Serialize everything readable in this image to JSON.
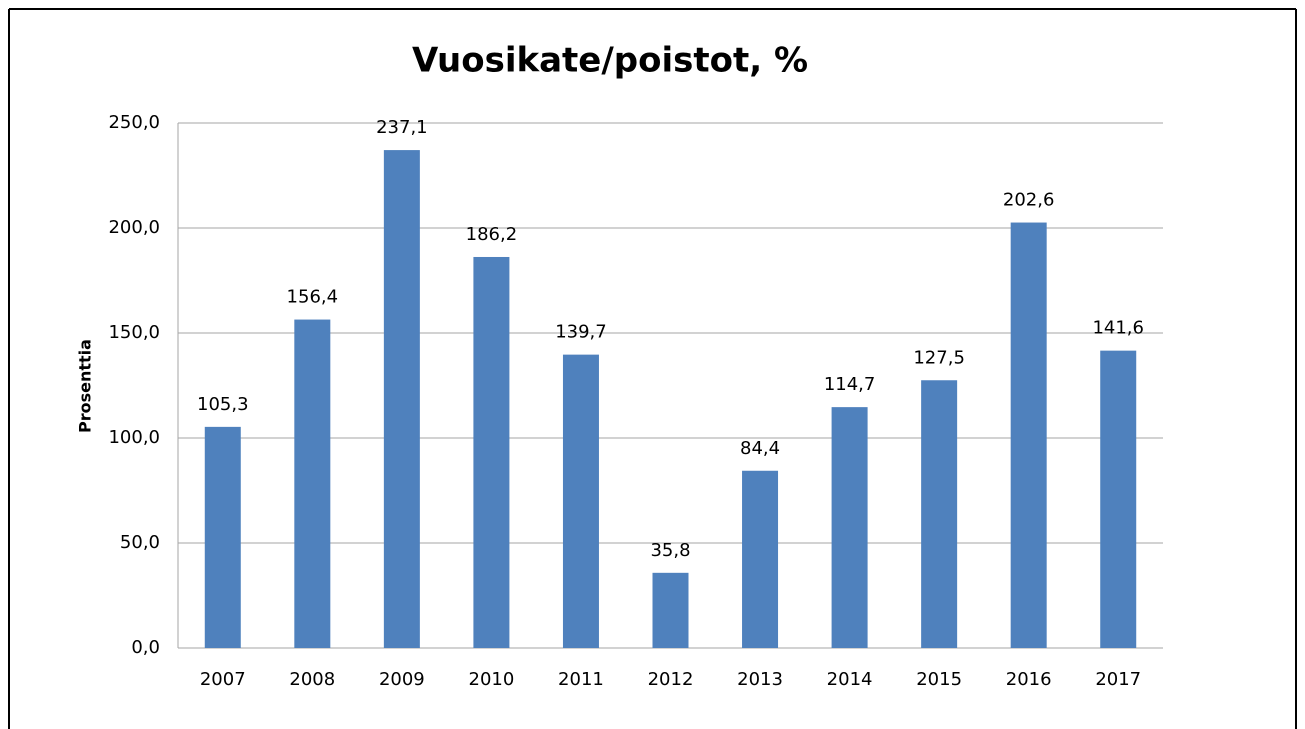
{
  "chart_data": {
    "type": "bar",
    "title": "Vuosikate/poistot, %",
    "y_label": "Prosenttia",
    "categories": [
      "2007",
      "2008",
      "2009",
      "2010",
      "2011",
      "2012",
      "2013",
      "2014",
      "2015",
      "2016",
      "2017"
    ],
    "values": [
      105.3,
      156.4,
      237.1,
      186.2,
      139.7,
      35.8,
      84.4,
      114.7,
      127.5,
      202.6,
      141.6
    ],
    "value_labels": [
      "105,3",
      "156,4",
      "237,1",
      "186,2",
      "139,7",
      "35,8",
      "84,4",
      "114,7",
      "127,5",
      "202,6",
      "141,6"
    ],
    "color": "#4f81bd",
    "ylim": [
      0,
      250
    ],
    "yticks": [
      {
        "value": 0,
        "label": "0,0"
      },
      {
        "value": 50,
        "label": "50,0"
      },
      {
        "value": 100,
        "label": "100,0"
      },
      {
        "value": 150,
        "label": "150,0"
      },
      {
        "value": 200,
        "label": "200,0"
      },
      {
        "value": 250,
        "label": "250,0"
      }
    ],
    "grid": true
  }
}
